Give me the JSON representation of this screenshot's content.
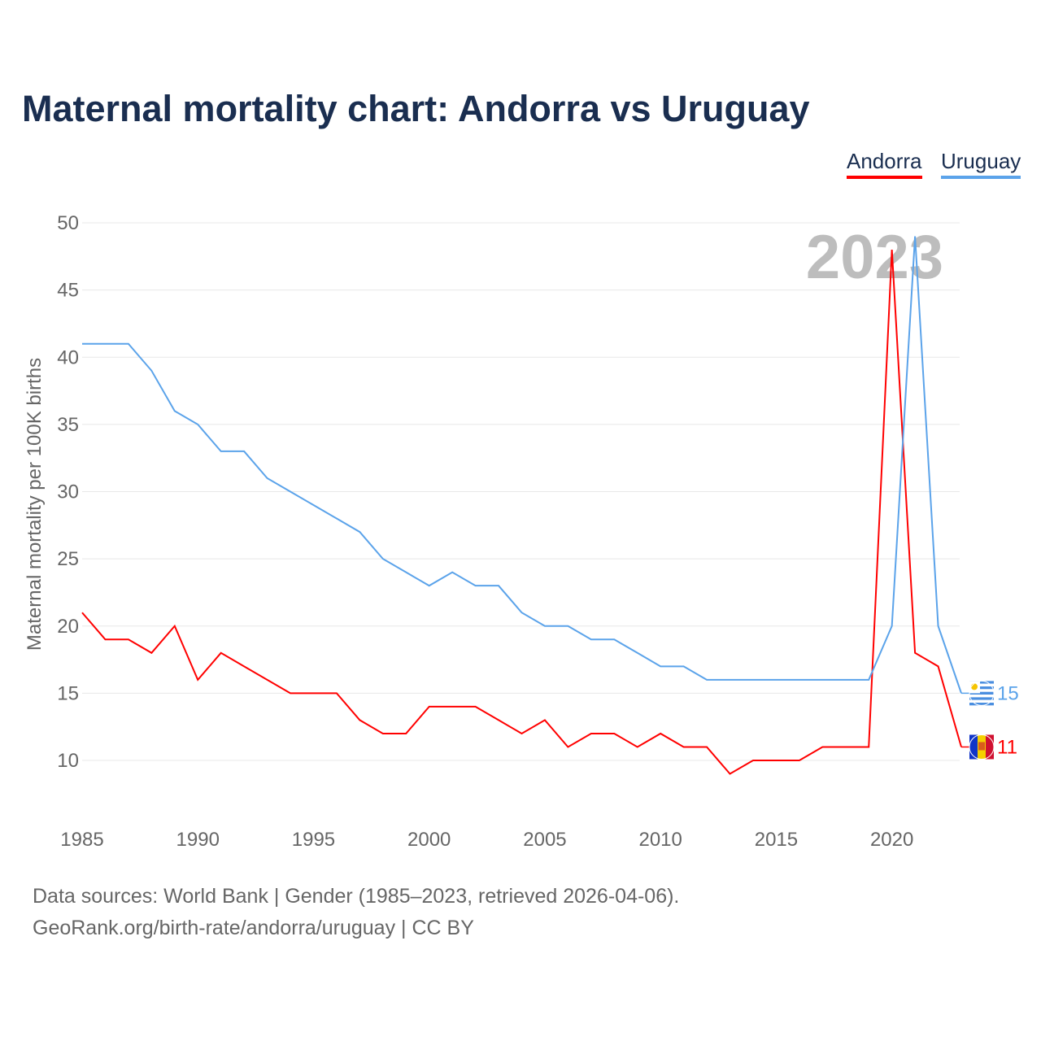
{
  "chart_data": {
    "type": "line",
    "title": "Maternal mortality chart: Andorra vs Uruguay",
    "xlabel": "",
    "ylabel": "Maternal mortality per 100K births",
    "xlim": [
      1985,
      2023
    ],
    "ylim": [
      6,
      50
    ],
    "grid": true,
    "legend_placement": "top-right",
    "x_ticks": [
      1985,
      1990,
      1995,
      2000,
      2005,
      2010,
      2015,
      2020
    ],
    "y_ticks": [
      10,
      15,
      20,
      25,
      30,
      35,
      40,
      45,
      50
    ],
    "x": [
      1985,
      1986,
      1987,
      1988,
      1989,
      1990,
      1991,
      1992,
      1993,
      1994,
      1995,
      1996,
      1997,
      1998,
      1999,
      2000,
      2001,
      2002,
      2003,
      2004,
      2005,
      2006,
      2007,
      2008,
      2009,
      2010,
      2011,
      2012,
      2013,
      2014,
      2015,
      2016,
      2017,
      2018,
      2019,
      2020,
      2021,
      2022,
      2023
    ],
    "series": [
      {
        "name": "Andorra",
        "color": "#ff0000",
        "end_label": "11",
        "values": [
          21,
          19,
          19,
          18,
          20,
          16,
          18,
          17,
          16,
          15,
          15,
          15,
          13,
          12,
          12,
          14,
          14,
          14,
          13,
          12,
          13,
          11,
          12,
          12,
          11,
          12,
          11,
          11,
          9,
          10,
          10,
          10,
          11,
          11,
          11,
          48,
          18,
          17,
          11
        ]
      },
      {
        "name": "Uruguay",
        "color": "#5ba3ea",
        "end_label": "15",
        "values": [
          41,
          41,
          41,
          39,
          36,
          35,
          33,
          33,
          31,
          30,
          29,
          28,
          27,
          25,
          24,
          23,
          24,
          23,
          23,
          21,
          20,
          20,
          19,
          19,
          18,
          17,
          17,
          16,
          16,
          16,
          16,
          16,
          16,
          16,
          16,
          20,
          49,
          20,
          15
        ]
      }
    ],
    "annotation": "2023"
  },
  "sources": {
    "line1": "Data sources: World Bank | Gender (1985–2023, retrieved 2026-04-06).",
    "line2": "GeoRank.org/birth-rate/andorra/uruguay | CC BY"
  }
}
